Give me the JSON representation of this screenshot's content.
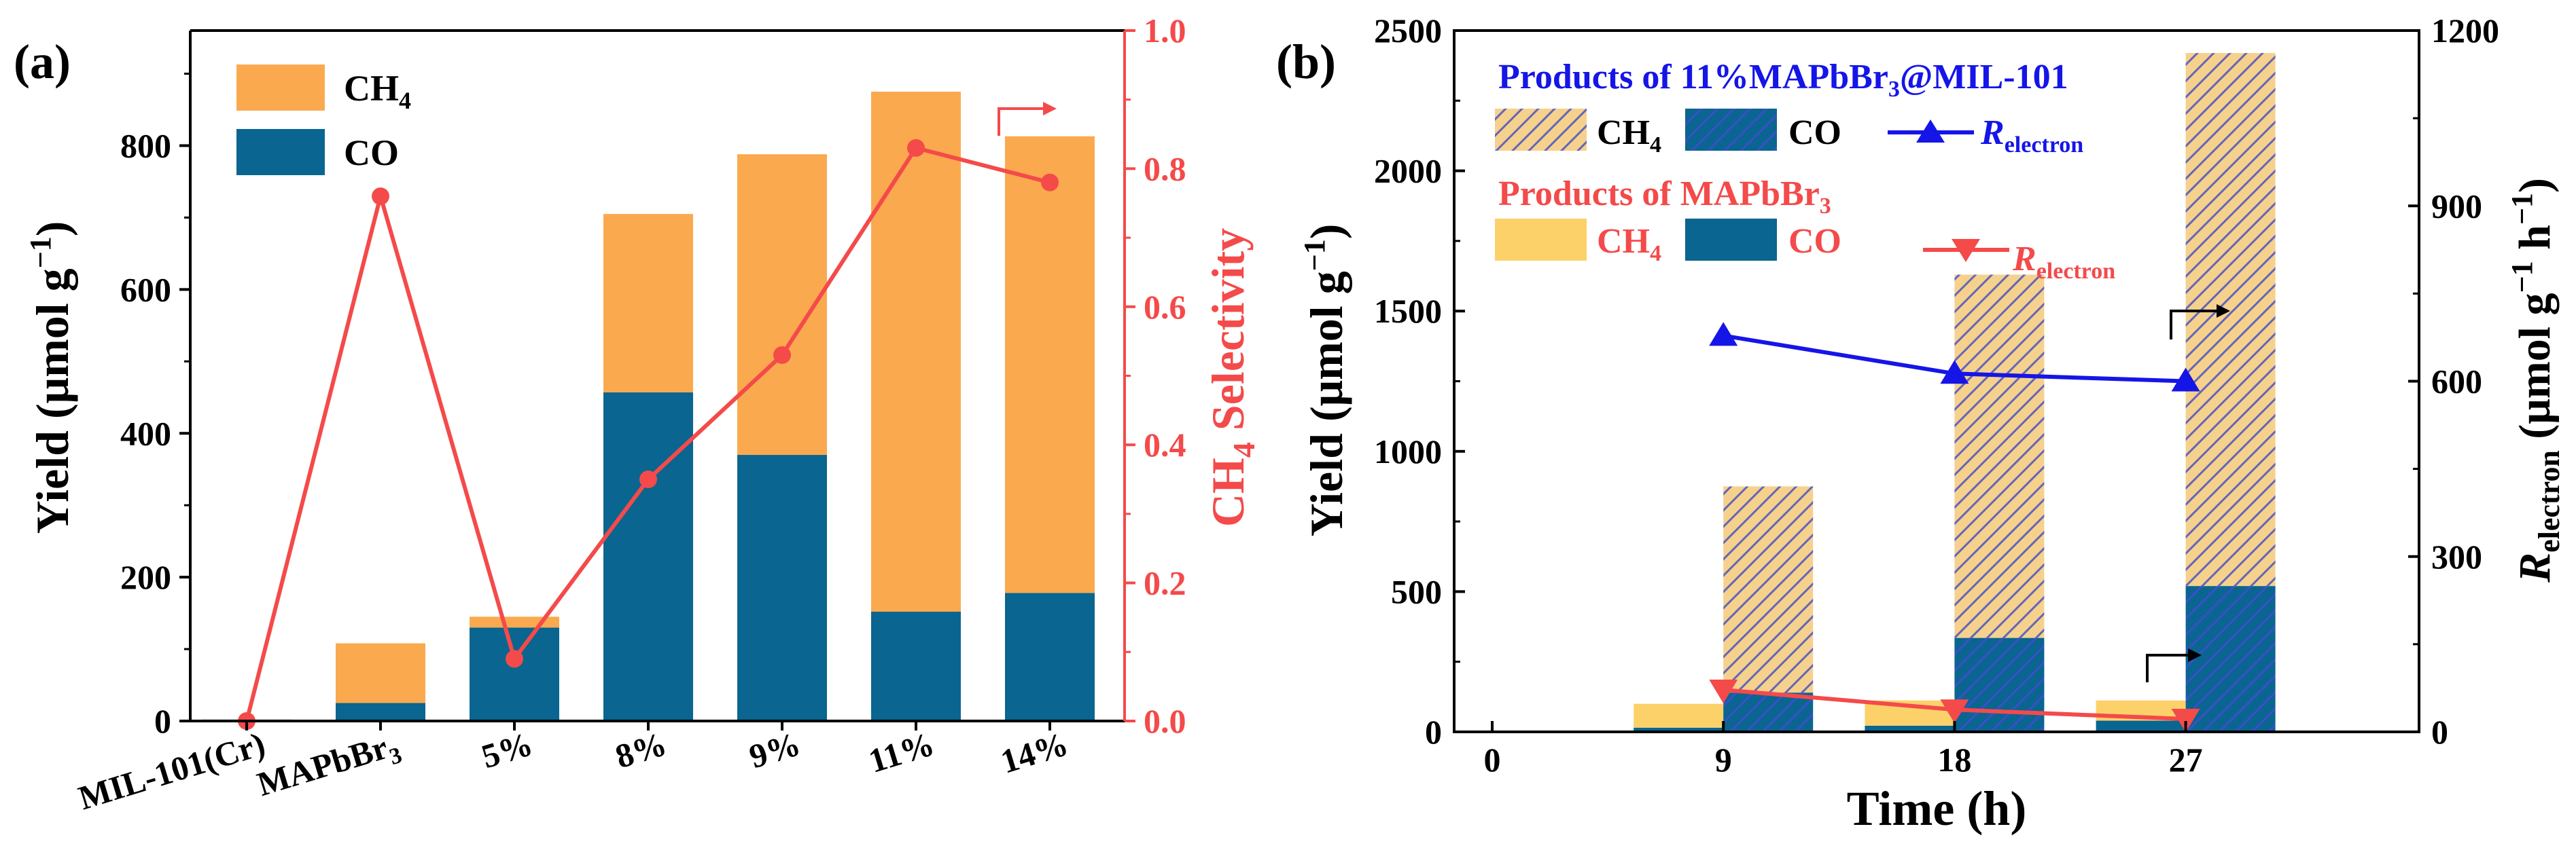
{
  "colors": {
    "ch4": "#FBA94F",
    "co": "#0A6590",
    "selectivity": "#F44A4A",
    "mil_series": "#1515E8",
    "mapbbr3_ch4": "#FDD169",
    "hatch_ch4_bg": "#F6D18D",
    "hatch_ch4_line": "#6466B8",
    "hatch_co_line": "#3A4FC8"
  },
  "chart_data": [
    {
      "panel": "(a)",
      "type": "bar",
      "stacked": true,
      "categories": [
        "MIL-101(Cr)",
        "MAPbBr3",
        "5%",
        "8%",
        "9%",
        "11%",
        "14%"
      ],
      "category_labels": [
        {
          "main": "MIL-101(Cr)",
          "sub": "",
          "tail": ""
        },
        {
          "main": "MAPbBr",
          "sub": "3",
          "tail": ""
        },
        {
          "main": "5%",
          "sub": "",
          "tail": ""
        },
        {
          "main": "8%",
          "sub": "",
          "tail": ""
        },
        {
          "main": "9%",
          "sub": "",
          "tail": ""
        },
        {
          "main": "11%",
          "sub": "",
          "tail": ""
        },
        {
          "main": "14%",
          "sub": "",
          "tail": ""
        }
      ],
      "series": [
        {
          "name": "CO",
          "values": [
            2,
            25,
            130,
            457,
            370,
            152,
            178
          ]
        },
        {
          "name": "CH4",
          "values": [
            0,
            83,
            15,
            248,
            418,
            723,
            635
          ]
        }
      ],
      "legend": [
        {
          "key": "ch4",
          "main": "CH",
          "sub": "4"
        },
        {
          "key": "co",
          "main": "CO",
          "sub": ""
        }
      ],
      "line": {
        "name": "CH4 Selectivity",
        "axis": "right",
        "values": [
          0.0,
          0.76,
          0.09,
          0.35,
          0.53,
          0.83,
          0.78
        ]
      },
      "ylabel_left": {
        "main": "Yield (μmol g",
        "sup": "−1",
        "tail": ")"
      },
      "ylabel_right": {
        "main": "CH",
        "sub": "4",
        "tail": " Selectivity"
      },
      "ylim_left": [
        0,
        960
      ],
      "yticks_left": [
        0,
        200,
        400,
        600,
        800
      ],
      "ylim_right": [
        0,
        1.0
      ],
      "yticks_right": [
        "0.0",
        "0.2",
        "0.4",
        "0.6",
        "0.8",
        "1.0"
      ],
      "panel_label": "(a)"
    },
    {
      "panel": "(b)",
      "type": "bar",
      "stacked": true,
      "xlabel": "Time (h)",
      "x_ticks": [
        "0",
        "9",
        "18",
        "27"
      ],
      "groups": [
        {
          "name": "Products of MAPbBr3",
          "series": [
            {
              "name": "CO",
              "values": [
                15,
                22,
                40
              ]
            },
            {
              "name": "CH4",
              "values": [
                85,
                90,
                72
              ]
            }
          ]
        },
        {
          "name": "Products of 11%MAPbBr3@MIL-101",
          "series": [
            {
              "name": "CO",
              "values": [
                140,
                335,
                520
              ]
            },
            {
              "name": "CH4",
              "values": [
                735,
                1295,
                1900
              ]
            }
          ]
        }
      ],
      "lines": [
        {
          "name": "R_electron 11%MAPbBr3@MIL-101",
          "axis": "right",
          "x": [
            9,
            18,
            27
          ],
          "values": [
            678,
            613,
            600
          ]
        },
        {
          "name": "R_electron MAPbBr3",
          "axis": "right",
          "x": [
            9,
            18,
            27
          ],
          "values": [
            72,
            38,
            22
          ]
        }
      ],
      "legend": {
        "group1_title": {
          "main": "Products of 11%MAPbBr",
          "sub": "3",
          "tail": "@MIL-101"
        },
        "group2_title": {
          "main": "Products of MAPbBr",
          "sub": "3"
        },
        "ch4": {
          "main": "CH",
          "sub": "4"
        },
        "co": "CO",
        "relectron": {
          "main": "R",
          "sub": "electron"
        }
      },
      "ylabel_left": {
        "main": "Yield (μmol g",
        "sup": "−1",
        "tail": ")"
      },
      "ylabel_right": {
        "main": "R",
        "sub": "electron",
        "tail": " (μmol g",
        "sup1": "−1",
        "mid": " h",
        "sup2": "−1",
        "end": ")"
      },
      "ylim_left": [
        0,
        2500
      ],
      "yticks_left": [
        0,
        500,
        1000,
        1500,
        2000,
        2500
      ],
      "ylim_right": [
        0,
        1200
      ],
      "yticks_right": [
        0,
        300,
        600,
        900,
        1200
      ],
      "panel_label": "(b)"
    }
  ]
}
